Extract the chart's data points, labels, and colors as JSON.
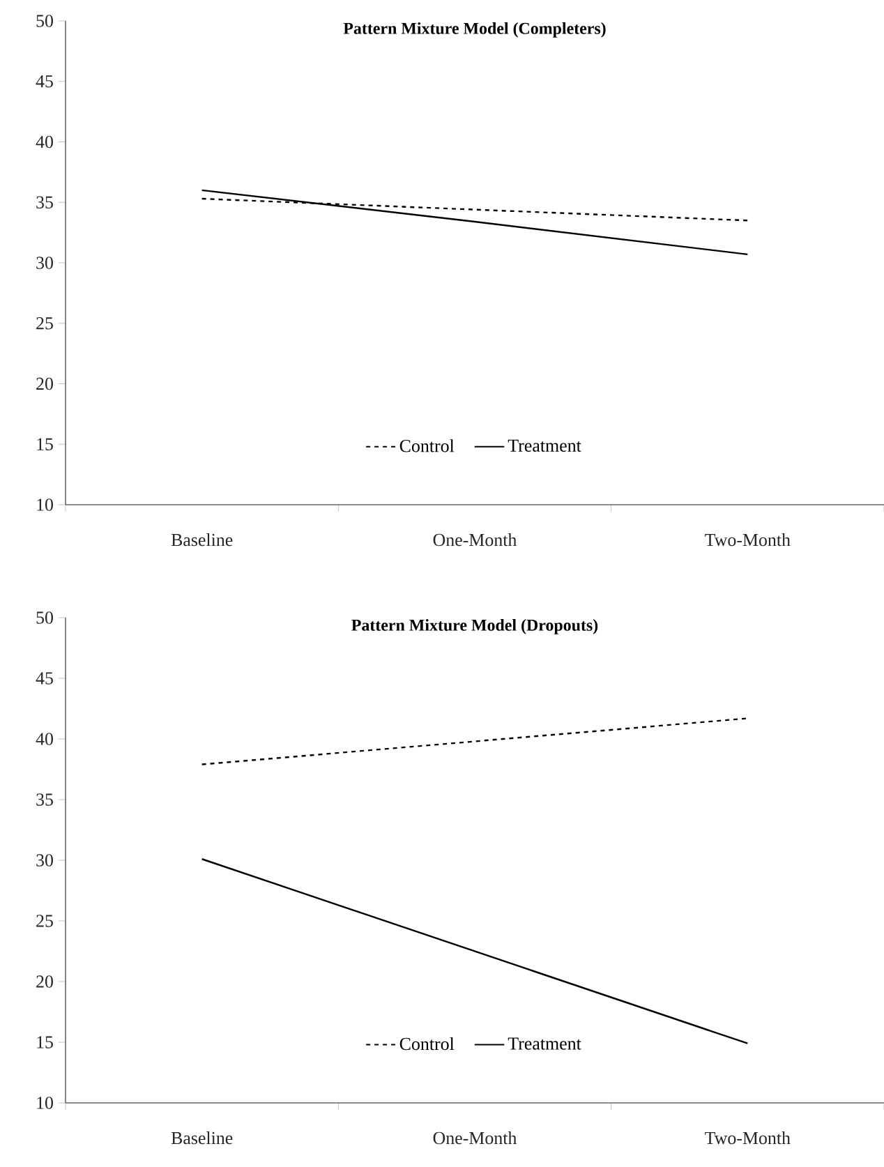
{
  "chart_data": [
    {
      "type": "line",
      "title": "Pattern Mixture Model (Completers)",
      "categories": [
        "Baseline",
        "One-Month",
        "Two-Month"
      ],
      "ylim": [
        10,
        50
      ],
      "yticks": [
        10,
        15,
        20,
        25,
        30,
        35,
        40,
        45,
        50
      ],
      "legend": "bottom",
      "series": [
        {
          "name": "Control",
          "color": "#000000",
          "line_style": "dashed",
          "values": [
            35.3,
            34.4,
            33.5
          ]
        },
        {
          "name": "Treatment",
          "color": "#000000",
          "line_style": "solid",
          "values": [
            36.0,
            33.4,
            30.7
          ]
        }
      ]
    },
    {
      "type": "line",
      "title": "Pattern Mixture Model (Dropouts)",
      "categories": [
        "Baseline",
        "One-Month",
        "Two-Month"
      ],
      "ylim": [
        10,
        50
      ],
      "yticks": [
        10,
        15,
        20,
        25,
        30,
        35,
        40,
        45,
        50
      ],
      "legend": "bottom",
      "series": [
        {
          "name": "Control",
          "color": "#000000",
          "line_style": "dashed",
          "values": [
            37.9,
            39.8,
            41.7
          ]
        },
        {
          "name": "Treatment",
          "color": "#000000",
          "line_style": "solid",
          "values": [
            30.1,
            22.5,
            14.9
          ]
        }
      ]
    }
  ]
}
